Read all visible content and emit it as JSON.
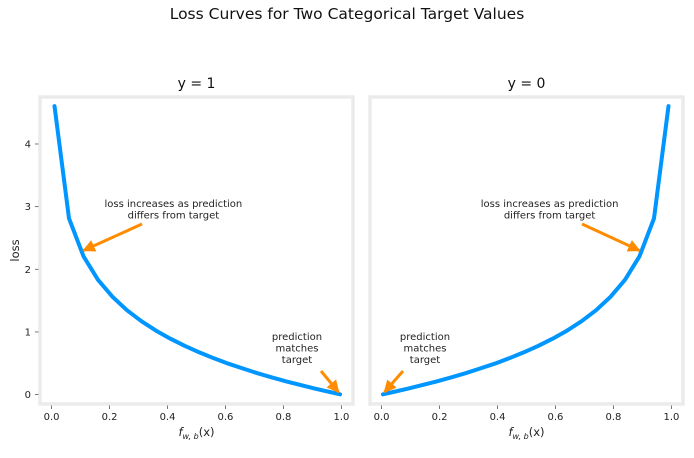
{
  "figure_title": "Loss Curves for Two Categorical Target Values",
  "chart_data": [
    {
      "type": "line",
      "title": "y = 1",
      "xlabel_math": {
        "base": "f",
        "sub": "w, b",
        "arg": "(x)"
      },
      "ylabel": "loss",
      "xlim": [
        -0.04,
        1.04
      ],
      "ylim": [
        -0.15,
        4.75
      ],
      "xticks": [
        "0.0",
        "0.2",
        "0.4",
        "0.6",
        "0.8",
        "1.0"
      ],
      "yticks": [
        "0",
        "1",
        "2",
        "3",
        "4"
      ],
      "grid": false,
      "color": "#0096ff",
      "series": [
        {
          "x": [
            0.01,
            0.06,
            0.11,
            0.16,
            0.21,
            0.26,
            0.31,
            0.36,
            0.41,
            0.46,
            0.51,
            0.56,
            0.61,
            0.66,
            0.71,
            0.76,
            0.81,
            0.86,
            0.91,
            0.96,
            0.995
          ],
          "y": [
            4.605,
            2.813,
            2.207,
            1.833,
            1.561,
            1.347,
            1.171,
            1.022,
            0.892,
            0.777,
            0.673,
            0.58,
            0.494,
            0.416,
            0.342,
            0.274,
            0.211,
            0.151,
            0.094,
            0.041,
            0.005
          ]
        }
      ],
      "annotations": [
        {
          "lines": [
            "loss increases as prediction",
            "differs from target"
          ],
          "point": [
            0.11,
            2.3
          ]
        },
        {
          "lines": [
            "prediction",
            "matches",
            "target"
          ],
          "point": [
            0.99,
            0.04
          ]
        }
      ]
    },
    {
      "type": "line",
      "title": "y = 0",
      "xlabel_math": {
        "base": "f",
        "sub": "w, b",
        "arg": "(x)"
      },
      "ylabel": "",
      "xlim": [
        -0.04,
        1.04
      ],
      "ylim": [
        -0.15,
        4.75
      ],
      "xticks": [
        "0.0",
        "0.2",
        "0.4",
        "0.6",
        "0.8",
        "1.0"
      ],
      "yticks": [],
      "grid": false,
      "color": "#0096ff",
      "series": [
        {
          "x": [
            0.005,
            0.04,
            0.09,
            0.14,
            0.19,
            0.24,
            0.29,
            0.34,
            0.39,
            0.44,
            0.49,
            0.54,
            0.59,
            0.64,
            0.69,
            0.74,
            0.79,
            0.84,
            0.89,
            0.94,
            0.99
          ],
          "y": [
            0.005,
            0.041,
            0.094,
            0.151,
            0.211,
            0.274,
            0.342,
            0.416,
            0.494,
            0.58,
            0.673,
            0.777,
            0.892,
            1.022,
            1.171,
            1.347,
            1.561,
            1.833,
            2.207,
            2.813,
            4.605
          ]
        }
      ],
      "annotations": [
        {
          "lines": [
            "loss increases as prediction",
            "differs from target"
          ],
          "point": [
            0.89,
            2.3
          ]
        },
        {
          "lines": [
            "prediction",
            "matches",
            "target"
          ],
          "point": [
            0.01,
            0.04
          ]
        }
      ]
    }
  ]
}
